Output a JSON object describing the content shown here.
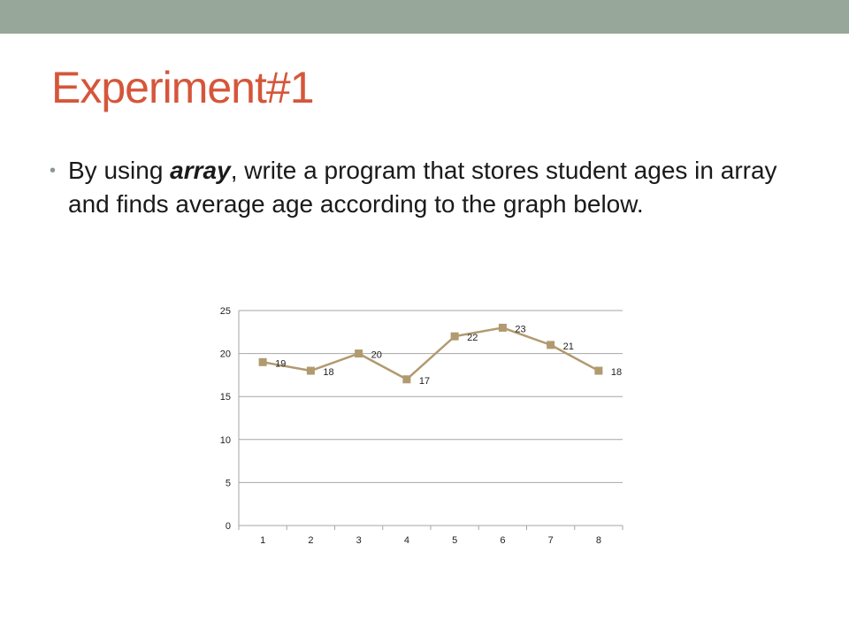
{
  "slide": {
    "title": "Experiment#1",
    "bullet_before": "By using ",
    "bullet_bold": "array",
    "bullet_after": ", write a program that stores student ages in array and finds average age according to the graph below."
  },
  "colors": {
    "top_bar": "#97a79a",
    "title": "#d5563a",
    "series": "#b19a6f",
    "grid": "#a6a6a6"
  },
  "chart_data": {
    "type": "line",
    "categories": [
      "1",
      "2",
      "3",
      "4",
      "5",
      "6",
      "7",
      "8"
    ],
    "series": [
      {
        "values": [
          19,
          18,
          20,
          17,
          22,
          23,
          21,
          18
        ]
      }
    ],
    "yticks": [
      "0",
      "5",
      "10",
      "15",
      "20",
      "25"
    ],
    "ylim": [
      0,
      25
    ],
    "grid": true,
    "data_labels": true,
    "marker": "square",
    "legend": "none"
  }
}
